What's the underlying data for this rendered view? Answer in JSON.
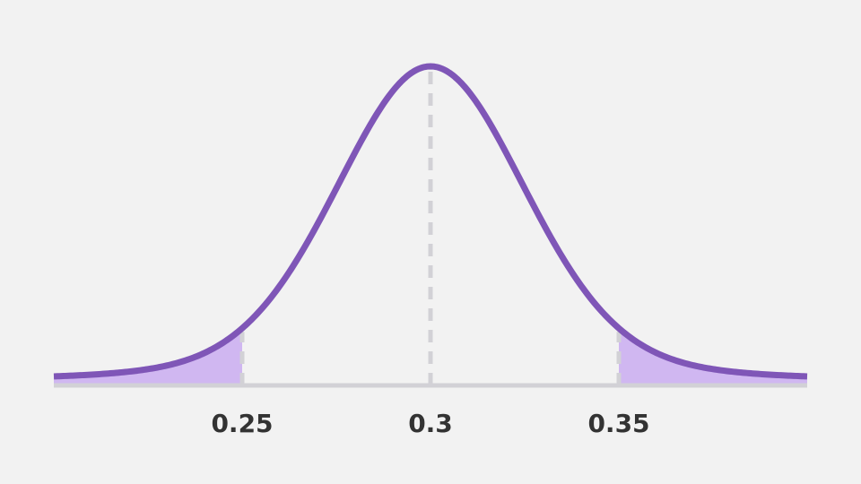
{
  "chart_data": {
    "type": "area",
    "distribution": "normal",
    "mean": 0.3,
    "sd": 0.025,
    "xlim": [
      0.2,
      0.4
    ],
    "tick_labels": [
      {
        "value": 0.25,
        "label": "0.25"
      },
      {
        "value": 0.3,
        "label": "0.3"
      },
      {
        "value": 0.35,
        "label": "0.35"
      }
    ],
    "shaded_regions": [
      {
        "from": 0.2,
        "to": 0.25,
        "side": "left-tail"
      },
      {
        "from": 0.35,
        "to": 0.4,
        "side": "right-tail"
      }
    ],
    "reference_lines": [
      0.25,
      0.3,
      0.35
    ],
    "title": "",
    "xlabel": "",
    "ylabel": "",
    "grid": false
  },
  "colors": {
    "background": "#f2f2f2",
    "curve": "#7f56b7",
    "shade": "#d0b7f1",
    "axis": "#d2d1d6",
    "reference_line": "#d2d1d6",
    "tick_text": "#333333"
  }
}
